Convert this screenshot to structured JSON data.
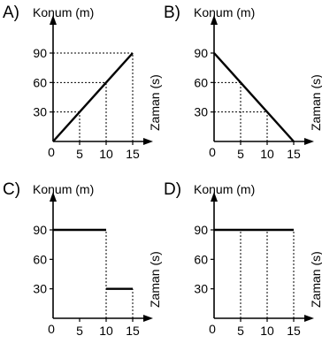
{
  "chart_data": [
    {
      "option": "A)",
      "type": "line",
      "xlabel": "Zaman (s)",
      "ylabel": "Konum (m)",
      "x_ticks": [
        "5",
        "10",
        "15"
      ],
      "y_ticks": [
        "30",
        "60",
        "90"
      ],
      "origin_label": "0",
      "xlim": [
        0,
        15
      ],
      "ylim": [
        0,
        90
      ],
      "series": [
        {
          "segments": [
            {
              "x": [
                0,
                15
              ],
              "y": [
                0,
                90
              ]
            }
          ]
        }
      ],
      "guides": [
        {
          "type": "h",
          "y": 90,
          "x": [
            0,
            15
          ]
        },
        {
          "type": "h",
          "y": 60,
          "x": [
            0,
            10
          ]
        },
        {
          "type": "h",
          "y": 30,
          "x": [
            0,
            5
          ]
        },
        {
          "type": "v",
          "x": 5,
          "y": [
            0,
            30
          ]
        },
        {
          "type": "v",
          "x": 10,
          "y": [
            0,
            60
          ]
        },
        {
          "type": "v",
          "x": 15,
          "y": [
            0,
            90
          ]
        }
      ]
    },
    {
      "option": "B)",
      "type": "line",
      "xlabel": "Zaman (s)",
      "ylabel": "Konum (m)",
      "x_ticks": [
        "5",
        "10",
        "15"
      ],
      "y_ticks": [
        "30",
        "60",
        "90"
      ],
      "origin_label": "0",
      "xlim": [
        0,
        15
      ],
      "ylim": [
        0,
        90
      ],
      "series": [
        {
          "segments": [
            {
              "x": [
                0,
                15
              ],
              "y": [
                90,
                0
              ]
            }
          ]
        }
      ],
      "guides": [
        {
          "type": "h",
          "y": 60,
          "x": [
            0,
            5
          ]
        },
        {
          "type": "h",
          "y": 30,
          "x": [
            0,
            10
          ]
        },
        {
          "type": "v",
          "x": 5,
          "y": [
            0,
            60
          ]
        },
        {
          "type": "v",
          "x": 10,
          "y": [
            0,
            30
          ]
        }
      ]
    },
    {
      "option": "C)",
      "type": "line",
      "xlabel": "Zaman (s)",
      "ylabel": "Konum (m)",
      "x_ticks": [
        "5",
        "10",
        "15"
      ],
      "y_ticks": [
        "30",
        "60",
        "90"
      ],
      "origin_label": "0",
      "xlim": [
        0,
        15
      ],
      "ylim": [
        0,
        90
      ],
      "series": [
        {
          "segments": [
            {
              "x": [
                0,
                10
              ],
              "y": [
                90,
                90
              ]
            },
            {
              "x": [
                10,
                15
              ],
              "y": [
                30,
                30
              ]
            }
          ]
        }
      ],
      "guides": [
        {
          "type": "v",
          "x": 10,
          "y": [
            0,
            90
          ]
        },
        {
          "type": "v",
          "x": 15,
          "y": [
            0,
            30
          ]
        }
      ]
    },
    {
      "option": "D)",
      "type": "line",
      "xlabel": "Zaman (s)",
      "ylabel": "Konum (m)",
      "x_ticks": [
        "5",
        "10",
        "15"
      ],
      "y_ticks": [
        "30",
        "60",
        "90"
      ],
      "origin_label": "0",
      "xlim": [
        0,
        15
      ],
      "ylim": [
        0,
        90
      ],
      "series": [
        {
          "segments": [
            {
              "x": [
                0,
                15
              ],
              "y": [
                90,
                90
              ]
            }
          ]
        }
      ],
      "guides": [
        {
          "type": "v",
          "x": 5,
          "y": [
            0,
            90
          ]
        },
        {
          "type": "v",
          "x": 10,
          "y": [
            0,
            90
          ]
        },
        {
          "type": "v",
          "x": 15,
          "y": [
            0,
            90
          ]
        }
      ]
    }
  ]
}
